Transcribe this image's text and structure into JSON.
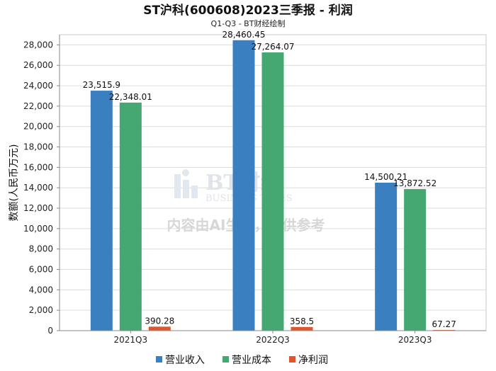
{
  "chart_data": {
    "type": "bar",
    "title": "ST沪科(600608)2023三季报 - 利润",
    "subtitle": "Q1-Q3 - BT财经绘制",
    "ylabel": "数额(人民币万元)",
    "xlabel": "",
    "categories": [
      "2021Q3",
      "2022Q3",
      "2023Q3"
    ],
    "ylim": [
      0,
      29000
    ],
    "yticks": [
      0,
      2000,
      4000,
      6000,
      8000,
      10000,
      12000,
      14000,
      16000,
      18000,
      20000,
      22000,
      24000,
      26000,
      28000
    ],
    "ytick_labels": [
      "0",
      "2,000",
      "4,000",
      "6,000",
      "8,000",
      "10,000",
      "12,000",
      "14,000",
      "16,000",
      "18,000",
      "20,000",
      "22,000",
      "24,000",
      "26,000",
      "28,000"
    ],
    "series": [
      {
        "name": "营业收入",
        "color": "#3a80c0",
        "values": [
          23515.9,
          28460.45,
          14500.21
        ],
        "labels": [
          "23,515.9",
          "28,460.45",
          "14,500.21"
        ]
      },
      {
        "name": "营业成本",
        "color": "#45a872",
        "values": [
          22348.01,
          27264.07,
          13872.52
        ],
        "labels": [
          "22,348.01",
          "27,264.07",
          "13,872.52"
        ]
      },
      {
        "name": "净利润",
        "color": "#e0562c",
        "values": [
          390.28,
          358.5,
          67.27
        ],
        "labels": [
          "390.28",
          "358.5",
          "67.27"
        ]
      }
    ],
    "legend_position": "bottom-center",
    "grid": true
  },
  "watermark": {
    "brand": "BT财经",
    "brand_en": "BUSINESS TIMES",
    "note": "内容由AI生成，仅供参考"
  }
}
